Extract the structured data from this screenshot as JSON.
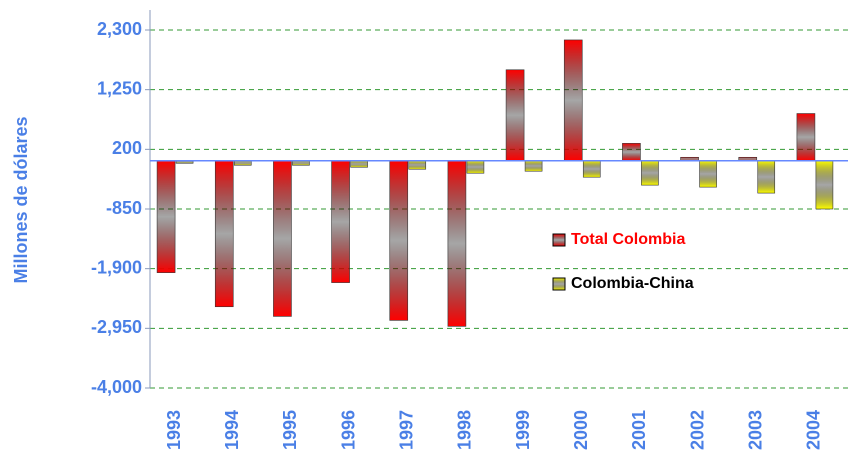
{
  "chart_data": {
    "type": "bar",
    "y_label": "Millones de dólares",
    "categories": [
      "1993",
      "1994",
      "1995",
      "1996",
      "1997",
      "1998",
      "1999",
      "2000",
      "2001",
      "2002",
      "2003",
      "2004"
    ],
    "series": [
      {
        "name": "Total Colombia",
        "color": "#ff0000",
        "values": [
          -1970,
          -2570,
          -2740,
          -2145,
          -2810,
          -2915,
          1600,
          2125,
          305,
          60,
          60,
          830
        ]
      },
      {
        "name": "Colombia-China",
        "color": "#ffff00",
        "values": [
          -45,
          -80,
          -80,
          -115,
          -150,
          -220,
          -185,
          -290,
          -430,
          -465,
          -570,
          -850
        ]
      }
    ],
    "ylim": [
      -4000,
      2300
    ],
    "yticks": [
      {
        "value": -4000,
        "label": "-4,000"
      },
      {
        "value": -2950,
        "label": "-2,950"
      },
      {
        "value": -1900,
        "label": "-1,900"
      },
      {
        "value": -850,
        "label": "-850"
      },
      200,
      {
        "value": 1250,
        "label": "1,250"
      },
      {
        "value": 2300,
        "label": "2,300"
      }
    ],
    "grid": true,
    "legend": "right"
  }
}
